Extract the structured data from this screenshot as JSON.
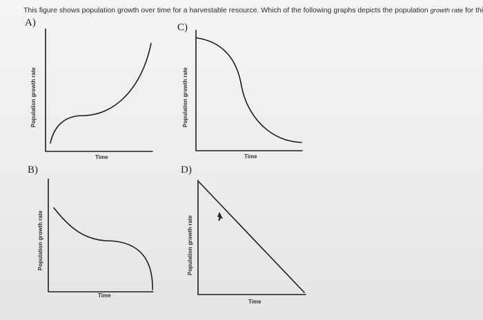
{
  "question": {
    "text_before": "This figure shows population growth over time for a harvestable resource. Which of the following graphs depicts the population ",
    "text_emphasis": "growth rate",
    "text_after": " for this populati"
  },
  "options": {
    "a": {
      "letter": "A)",
      "ylabel": "Population growth rate",
      "xlabel": "Time"
    },
    "b": {
      "letter": "B)",
      "ylabel": "Population growth rate",
      "xlabel": "Time"
    },
    "c": {
      "letter": "C)",
      "ylabel": "Population growth rate",
      "xlabel": "Time"
    },
    "d": {
      "letter": "D)",
      "ylabel": "Population growth rate",
      "xlabel": "Time"
    }
  },
  "colors": {
    "ink": "#1a1a1a",
    "background": "#ececec"
  }
}
